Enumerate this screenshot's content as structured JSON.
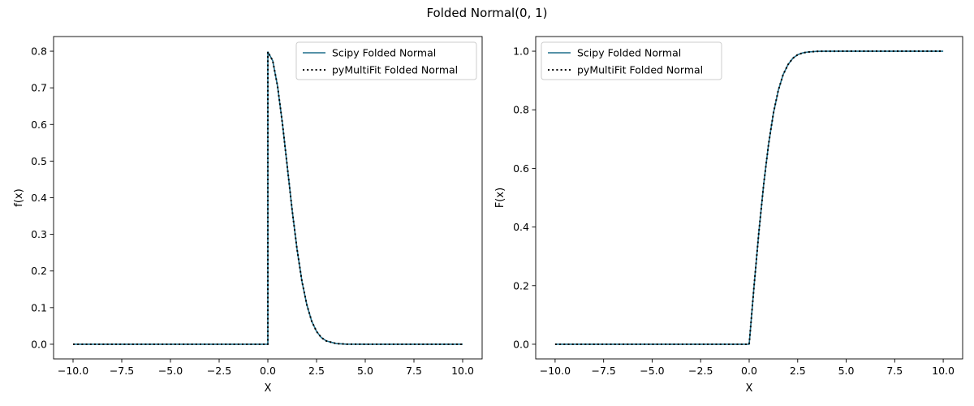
{
  "figure": {
    "title": "Folded Normal(0, 1)"
  },
  "chart_data": [
    {
      "type": "line",
      "title": "",
      "xlabel": "X",
      "ylabel": "f(x)",
      "xlim": [
        -11,
        11
      ],
      "ylim": [
        -0.04,
        0.84
      ],
      "xticks": [
        -10,
        -7.5,
        -5,
        -2.5,
        0,
        2.5,
        5,
        7.5,
        10
      ],
      "xtick_labels": [
        "−10.0",
        "−7.5",
        "−5.0",
        "−2.5",
        "0.0",
        "2.5",
        "5.0",
        "7.5",
        "10.0"
      ],
      "yticks": [
        0,
        0.1,
        0.2,
        0.3,
        0.4,
        0.5,
        0.6,
        0.7,
        0.8
      ],
      "ytick_labels": [
        "0.0",
        "0.1",
        "0.2",
        "0.3",
        "0.4",
        "0.5",
        "0.6",
        "0.7",
        "0.8"
      ],
      "legend_position": "top-right",
      "grid": false,
      "series": [
        {
          "name": "Scipy Folded Normal",
          "color": "#1f6f8b",
          "style": "solid",
          "x": [
            -10,
            -5,
            0,
            0,
            0.25,
            0.5,
            0.75,
            1,
            1.25,
            1.5,
            1.75,
            2,
            2.25,
            2.5,
            2.75,
            3,
            3.5,
            4,
            5,
            10
          ],
          "y": [
            0,
            0,
            0,
            0.798,
            0.774,
            0.704,
            0.602,
            0.484,
            0.365,
            0.259,
            0.172,
            0.108,
            0.063,
            0.035,
            0.018,
            0.009,
            0.002,
            0.0003,
            0,
            0
          ]
        },
        {
          "name": "pyMultiFit Folded Normal",
          "color": "#000000",
          "style": "dotted",
          "x": [
            -10,
            -5,
            0,
            0,
            0.25,
            0.5,
            0.75,
            1,
            1.25,
            1.5,
            1.75,
            2,
            2.25,
            2.5,
            2.75,
            3,
            3.5,
            4,
            5,
            10
          ],
          "y": [
            0,
            0,
            0,
            0.798,
            0.774,
            0.704,
            0.602,
            0.484,
            0.365,
            0.259,
            0.172,
            0.108,
            0.063,
            0.035,
            0.018,
            0.009,
            0.002,
            0.0003,
            0,
            0
          ]
        }
      ]
    },
    {
      "type": "line",
      "title": "",
      "xlabel": "X",
      "ylabel": "F(x)",
      "xlim": [
        -11,
        11
      ],
      "ylim": [
        -0.05,
        1.05
      ],
      "xticks": [
        -10,
        -7.5,
        -5,
        -2.5,
        0,
        2.5,
        5,
        7.5,
        10
      ],
      "xtick_labels": [
        "−10.0",
        "−7.5",
        "−5.0",
        "−2.5",
        "0.0",
        "2.5",
        "5.0",
        "7.5",
        "10.0"
      ],
      "yticks": [
        0,
        0.2,
        0.4,
        0.6,
        0.8,
        1.0
      ],
      "ytick_labels": [
        "0.0",
        "0.2",
        "0.4",
        "0.6",
        "0.8",
        "1.0"
      ],
      "legend_position": "top-left",
      "grid": false,
      "series": [
        {
          "name": "Scipy Folded Normal",
          "color": "#1f6f8b",
          "style": "solid",
          "x": [
            -10,
            -5,
            0,
            0.25,
            0.5,
            0.75,
            1,
            1.25,
            1.5,
            1.75,
            2,
            2.25,
            2.5,
            2.75,
            3,
            3.5,
            4,
            5,
            10
          ],
          "y": [
            0,
            0,
            0,
            0.197,
            0.383,
            0.547,
            0.683,
            0.789,
            0.866,
            0.92,
            0.954,
            0.976,
            0.988,
            0.994,
            0.997,
            0.9995,
            0.9999,
            1,
            1
          ]
        },
        {
          "name": "pyMultiFit Folded Normal",
          "color": "#000000",
          "style": "dotted",
          "x": [
            -10,
            -5,
            0,
            0.25,
            0.5,
            0.75,
            1,
            1.25,
            1.5,
            1.75,
            2,
            2.25,
            2.5,
            2.75,
            3,
            3.5,
            4,
            5,
            10
          ],
          "y": [
            0,
            0,
            0,
            0.197,
            0.383,
            0.547,
            0.683,
            0.789,
            0.866,
            0.92,
            0.954,
            0.976,
            0.988,
            0.994,
            0.997,
            0.9995,
            0.9999,
            1,
            1
          ]
        }
      ]
    }
  ]
}
